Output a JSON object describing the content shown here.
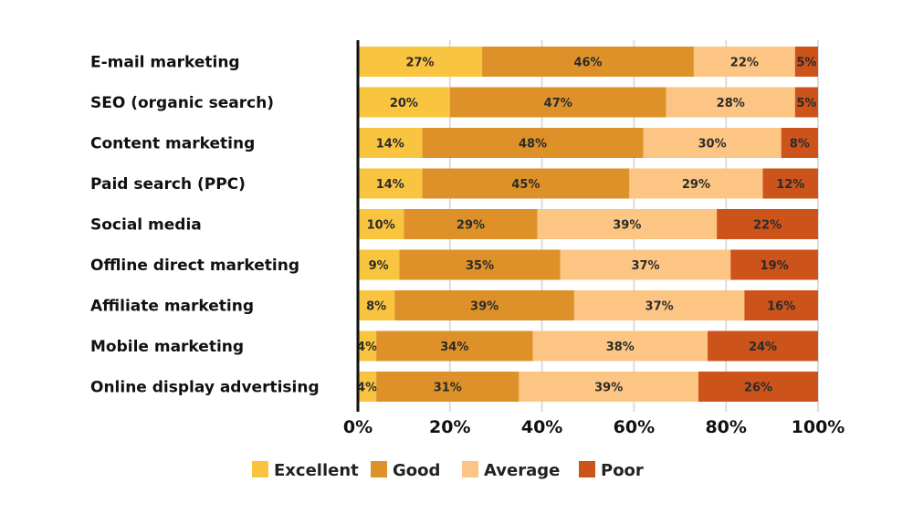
{
  "chart_data": {
    "type": "bar",
    "orientation": "horizontal",
    "stacked": true,
    "title": "",
    "xlabel": "",
    "ylabel": "",
    "xlim": [
      0,
      100
    ],
    "ticks": [
      "0%",
      "20%",
      "40%",
      "60%",
      "80%",
      "100%"
    ],
    "tick_values": [
      0,
      20,
      40,
      60,
      80,
      100
    ],
    "grid": true,
    "legend_position": "bottom",
    "categories": [
      "E-mail marketing",
      "SEO (organic search)",
      "Content marketing",
      "Paid search (PPC)",
      "Social media",
      "Offline direct marketing",
      "Affiliate marketing",
      "Mobile marketing",
      "Online display advertising"
    ],
    "series": [
      {
        "name": "Excellent",
        "color": "#F9C440",
        "values": [
          27,
          20,
          14,
          14,
          10,
          9,
          8,
          4,
          4
        ]
      },
      {
        "name": "Good",
        "color": "#DE9128",
        "values": [
          46,
          47,
          48,
          45,
          29,
          35,
          39,
          34,
          31
        ]
      },
      {
        "name": "Average",
        "color": "#FDC584",
        "values": [
          22,
          28,
          30,
          29,
          39,
          37,
          37,
          38,
          39
        ]
      },
      {
        "name": "Poor",
        "color": "#CC531A",
        "values": [
          5,
          5,
          8,
          12,
          22,
          19,
          16,
          24,
          26
        ]
      }
    ],
    "labels": [
      [
        "27%",
        "46%",
        "22%",
        "5%"
      ],
      [
        "20%",
        "47%",
        "28%",
        "5%"
      ],
      [
        "14%",
        "48%",
        "30%",
        "8%"
      ],
      [
        "14%",
        "45%",
        "29%",
        "12%"
      ],
      [
        "10%",
        "29%",
        "39%",
        "22%"
      ],
      [
        "9%",
        "35%",
        "37%",
        "19%"
      ],
      [
        "8%",
        "39%",
        "37%",
        "16%"
      ],
      [
        "4%",
        "34%",
        "38%",
        "24%"
      ],
      [
        "4%",
        "31%",
        "39%",
        "26%"
      ]
    ],
    "segment_totals": [
      100,
      100,
      100,
      100,
      100,
      100,
      100,
      100,
      100
    ]
  }
}
